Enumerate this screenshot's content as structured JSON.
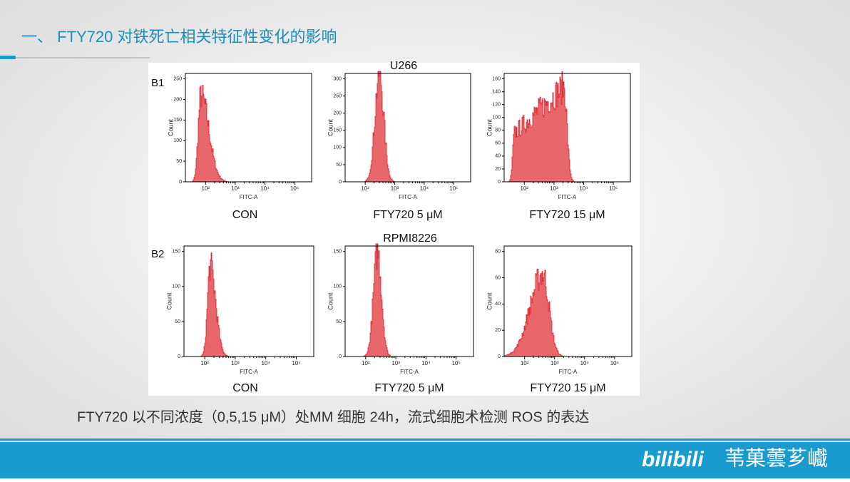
{
  "header": {
    "title": "一、 FTY720 对铁死亡相关特征性变化的影响"
  },
  "figure": {
    "rows": [
      {
        "label": "B1",
        "cell_line": "U266",
        "panels": [
          {
            "condition": "CON",
            "y_label": "Count",
            "x_label": "FITC-A",
            "yticks": [
              "0",
              "50",
              "100",
              "150",
              "200",
              "250"
            ],
            "xticks": [
              "10²",
              "10³",
              "10⁴",
              "10⁵"
            ]
          },
          {
            "condition": "FTY720 5 μM",
            "y_label": "Count",
            "x_label": "FITC-A",
            "yticks": [
              "0",
              "50",
              "100",
              "150",
              "200",
              "250",
              "300"
            ],
            "xticks": [
              "10²",
              "10³",
              "10⁴",
              "10⁵"
            ]
          },
          {
            "condition": "FTY720 15 μM",
            "y_label": "Count",
            "x_label": "FITC-A",
            "yticks": [
              "0",
              "20",
              "40",
              "60",
              "80",
              "100",
              "120",
              "140",
              "160"
            ],
            "xticks": [
              "10²",
              "10³",
              "10⁴",
              "10⁵"
            ]
          }
        ]
      },
      {
        "label": "B2",
        "cell_line": "RPMI8226",
        "panels": [
          {
            "condition": "CON",
            "y_label": "Count",
            "x_label": "FITC-A",
            "yticks": [
              "0",
              "50",
              "100",
              "150"
            ],
            "xticks": [
              "10²",
              "10³",
              "10⁴",
              "10⁵"
            ]
          },
          {
            "condition": "FTY720 5 μM",
            "y_label": "Count",
            "x_label": "FITC-A",
            "yticks": [
              "0",
              "50",
              "100",
              "150"
            ],
            "xticks": [
              "10²",
              "10³",
              "10⁴",
              "10⁵"
            ]
          },
          {
            "condition": "FTY720 15 μM",
            "y_label": "Count",
            "x_label": "FITC-A",
            "yticks": [
              "0",
              "20",
              "40",
              "60",
              "80"
            ],
            "xticks": [
              "10²",
              "10³",
              "10⁴",
              "10⁵"
            ]
          }
        ]
      }
    ]
  },
  "caption": "FTY720 以不同浓度（0,5,15 μM）处MM 细胞 24h，流式细胞术检测 ROS 的表达",
  "footer": {
    "logo": "bilibili",
    "watermark": "苇菓蕓芗巇"
  }
}
